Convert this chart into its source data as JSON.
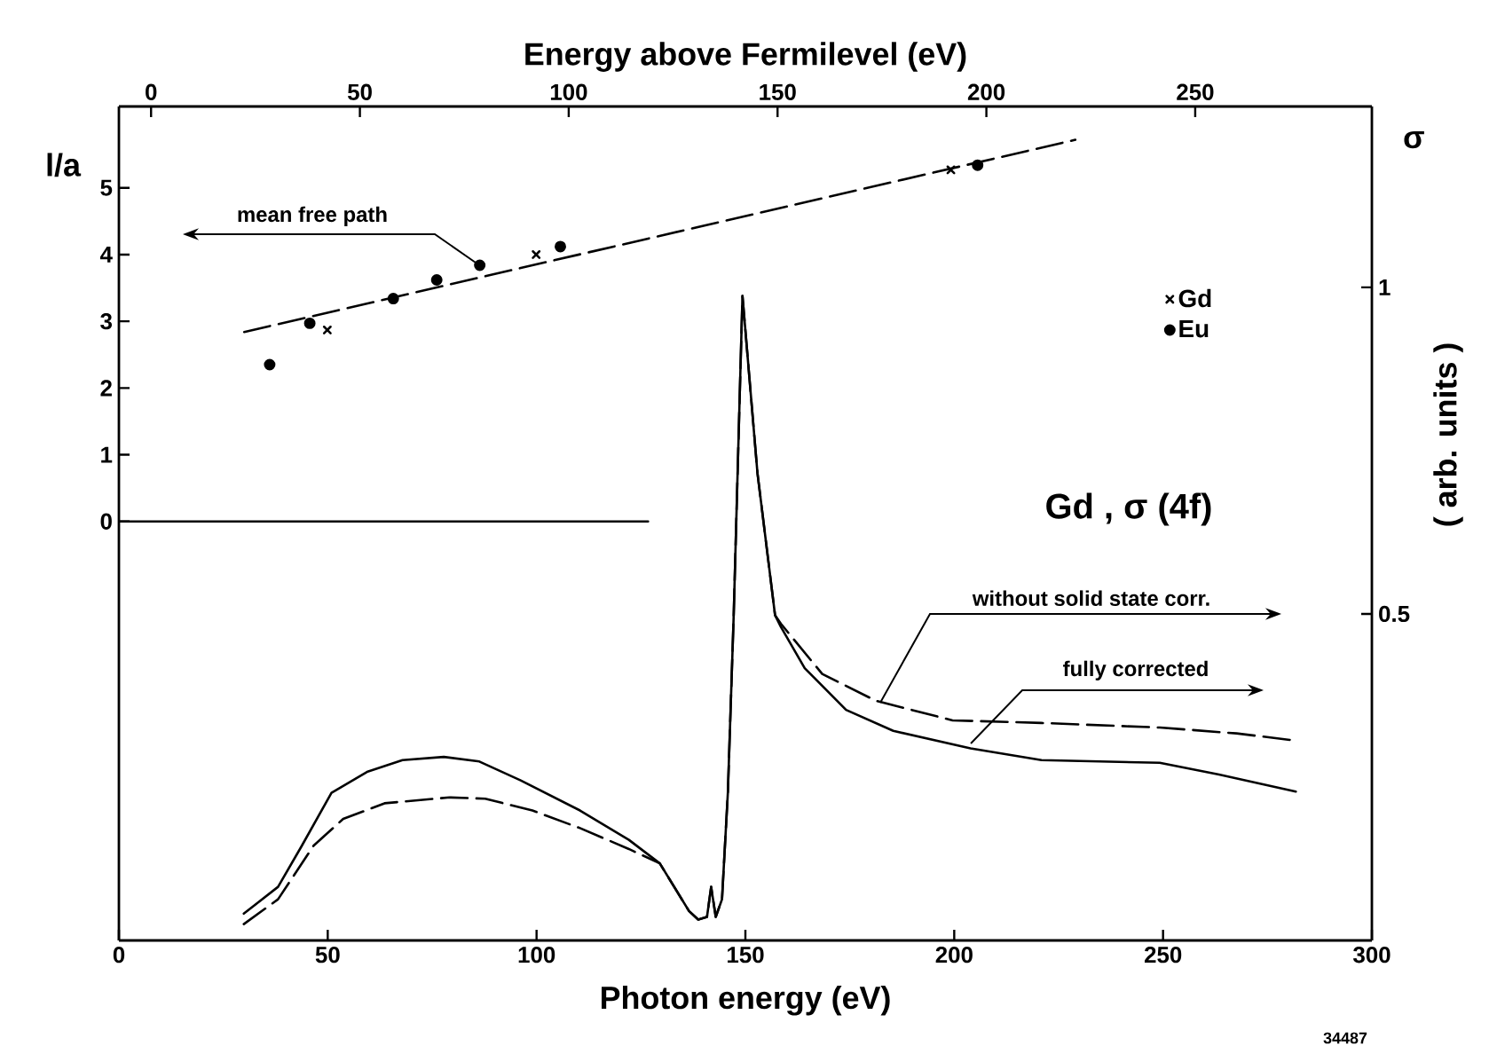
{
  "chart_data": {
    "type": "line",
    "xlabel": "Photon energy (eV)",
    "x2label": "Energy above Fermilevel (eV)",
    "ylabel": "l/a",
    "y2label": "σ",
    "xlim": [
      0,
      300
    ],
    "xticks": [
      0,
      50,
      100,
      150,
      200,
      250,
      300
    ],
    "x2lim": [
      -7.7,
      292.3
    ],
    "x2ticks": [
      0,
      50,
      100,
      150,
      200,
      250
    ],
    "ylim": [
      -6.28,
      6.22
    ],
    "yticks": [
      0,
      1,
      2,
      3,
      4,
      5
    ],
    "y2lim": [
      0,
      1.277
    ],
    "y2ticks": [
      0.5,
      1
    ],
    "legend": "top right",
    "annotations": [
      "mean free path",
      "Gd , σ (4f)",
      "without solid state corr.",
      "fully corrected",
      "( arb. units )",
      "34487"
    ],
    "series": [
      {
        "axis": "x2",
        "color": "#000000",
        "line_style": "dashed",
        "x": [
          22.3,
          221.3
        ],
        "values": [
          2.84,
          5.72
        ]
      },
      {
        "axis": "x2",
        "color": "#000000",
        "line_style": "solid",
        "x": [
          -7.7,
          119
        ],
        "values": [
          0,
          0
        ]
      },
      {
        "type": "scatter",
        "axis": "x2",
        "name": "Gd",
        "color": "#000000",
        "marker": "cross",
        "x": [
          42.2,
          92.2,
          191.5
        ],
        "values": [
          2.87,
          4.0,
          5.27
        ]
      },
      {
        "type": "scatter",
        "axis": "x2",
        "name": "Eu",
        "color": "#000000",
        "marker": "circle",
        "x": [
          28.4,
          38.0,
          58.0,
          68.4,
          78.7,
          98.0,
          197.9
        ],
        "values": [
          2.35,
          2.97,
          3.34,
          3.62,
          3.84,
          4.12,
          5.34
        ]
      },
      {
        "axis": "y2",
        "color": "#000000",
        "line_style": "solid",
        "x": [
          29.9,
          38.1,
          43.8,
          50.9,
          59.4,
          67.9,
          77.8,
          86.3,
          96.2,
          110.4,
          122.1,
          129.5,
          136.5,
          138.7,
          140.8,
          141.8,
          142.9,
          144.4,
          145.8,
          147.2,
          149.3,
          152.9,
          157.1,
          158.5,
          164.2,
          174.1,
          185.4,
          203.9,
          220.9,
          249.2,
          263.4,
          281.8
        ],
        "values": [
          0.041,
          0.082,
          0.145,
          0.226,
          0.258,
          0.276,
          0.281,
          0.274,
          0.245,
          0.199,
          0.154,
          0.118,
          0.045,
          0.032,
          0.036,
          0.082,
          0.036,
          0.063,
          0.226,
          0.498,
          0.987,
          0.715,
          0.498,
          0.48,
          0.417,
          0.353,
          0.321,
          0.294,
          0.276,
          0.272,
          0.254,
          0.228
        ]
      },
      {
        "axis": "y2",
        "color": "#000000",
        "line_style": "dashed",
        "x": [
          29.9,
          38.1,
          46.6,
          53.7,
          63.6,
          79.2,
          87.7,
          99.0,
          110.4,
          122.1,
          129.5,
          136.5,
          138.7,
          140.8,
          141.8,
          142.9,
          144.4,
          145.8,
          147.2,
          149.3,
          152.9,
          157.1,
          158.5,
          168.4,
          181.2,
          199.6,
          220.9,
          249.2,
          267.6,
          281.8
        ],
        "values": [
          0.025,
          0.063,
          0.145,
          0.186,
          0.21,
          0.219,
          0.217,
          0.199,
          0.172,
          0.14,
          0.118,
          0.045,
          0.032,
          0.036,
          0.082,
          0.036,
          0.063,
          0.226,
          0.498,
          0.987,
          0.715,
          0.498,
          0.485,
          0.408,
          0.367,
          0.337,
          0.333,
          0.326,
          0.317,
          0.306
        ]
      }
    ]
  }
}
